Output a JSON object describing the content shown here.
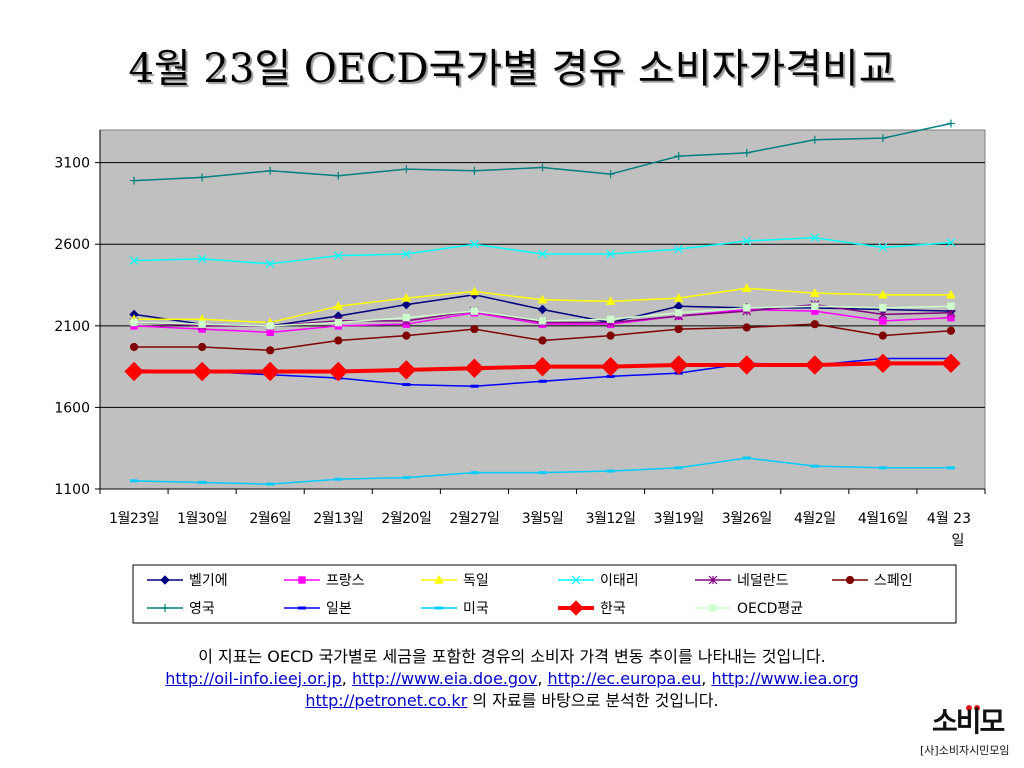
{
  "title": "4월 23일 OECD국가별 경유 소비자가격비교",
  "caption": {
    "line1": "이 지표는 OECD 국가별로 세금을 포함한 경유의 소비자 가격 변동 추이를 나타내는 것입니다.",
    "links": [
      "http://oil-info.ieej.or.jp",
      "http://www.eia.doe.gov",
      "http://ec.europa.eu",
      "http://www.iea.org"
    ],
    "link_last": "http://petronet.co.kr",
    "line3_suffix": " 의 자료를 바탕으로 분석한 것입니다."
  },
  "logo": {
    "mark": "소비모",
    "name": "[사]소비자시민모임"
  },
  "chart_data": {
    "type": "line",
    "categories": [
      "1월23일",
      "1월30일",
      "2월6일",
      "2월13일",
      "2월20일",
      "2월27일",
      "3월5일",
      "3월12일",
      "3월19일",
      "3월26일",
      "4월2일",
      "4월16일",
      "4월 23일"
    ],
    "ylim": [
      1100,
      3300
    ],
    "yticks": [
      1100,
      1600,
      2100,
      2600,
      3100
    ],
    "grid": true,
    "legend_position": "bottom",
    "series": [
      {
        "name": "벨기에",
        "color": "#000080",
        "marker": "diamond",
        "values": [
          2170,
          2110,
          2100,
          2160,
          2230,
          2290,
          2200,
          2120,
          2220,
          2210,
          2210,
          2200,
          2190
        ]
      },
      {
        "name": "프랑스",
        "color": "#ff00ff",
        "marker": "square",
        "values": [
          2100,
          2080,
          2060,
          2100,
          2110,
          2180,
          2110,
          2110,
          2160,
          2200,
          2190,
          2130,
          2150
        ]
      },
      {
        "name": "독일",
        "color": "#ffff00",
        "marker": "triangle",
        "values": [
          2140,
          2140,
          2120,
          2220,
          2270,
          2310,
          2260,
          2250,
          2270,
          2330,
          2300,
          2290,
          2290
        ]
      },
      {
        "name": "이태리",
        "color": "#00ffff",
        "marker": "x",
        "values": [
          2500,
          2510,
          2480,
          2530,
          2540,
          2600,
          2540,
          2540,
          2570,
          2620,
          2640,
          2580,
          2610
        ]
      },
      {
        "name": "네덜란드",
        "color": "#800080",
        "marker": "star",
        "values": [
          2120,
          2100,
          2100,
          2130,
          2130,
          2190,
          2120,
          2120,
          2160,
          2190,
          2230,
          2170,
          2180
        ]
      },
      {
        "name": "스페인",
        "color": "#800000",
        "marker": "circle",
        "values": [
          1970,
          1970,
          1950,
          2010,
          2040,
          2080,
          2010,
          2040,
          2080,
          2090,
          2110,
          2040,
          2070
        ]
      },
      {
        "name": "영국",
        "color": "#008080",
        "marker": "plus",
        "values": [
          2990,
          3010,
          3050,
          3020,
          3060,
          3050,
          3070,
          3030,
          3140,
          3160,
          3240,
          3250,
          3340
        ]
      },
      {
        "name": "일본",
        "color": "#0000ff",
        "marker": "dash",
        "values": [
          1830,
          1820,
          1800,
          1780,
          1740,
          1730,
          1760,
          1790,
          1810,
          1870,
          1860,
          1900,
          1900
        ]
      },
      {
        "name": "미국",
        "color": "#00ccff",
        "marker": "dash",
        "values": [
          1150,
          1140,
          1130,
          1160,
          1170,
          1200,
          1200,
          1210,
          1230,
          1290,
          1240,
          1230,
          1230
        ]
      },
      {
        "name": "한국",
        "color": "#ff0000",
        "marker": "diamond",
        "values": [
          1820,
          1820,
          1820,
          1820,
          1830,
          1840,
          1850,
          1850,
          1860,
          1860,
          1860,
          1870,
          1870
        ]
      },
      {
        "name": "OECD평균",
        "color": "#ccffcc",
        "marker": "square",
        "values": [
          2120,
          2110,
          2100,
          2120,
          2150,
          2190,
          2130,
          2140,
          2180,
          2210,
          2220,
          2210,
          2220
        ]
      }
    ]
  }
}
